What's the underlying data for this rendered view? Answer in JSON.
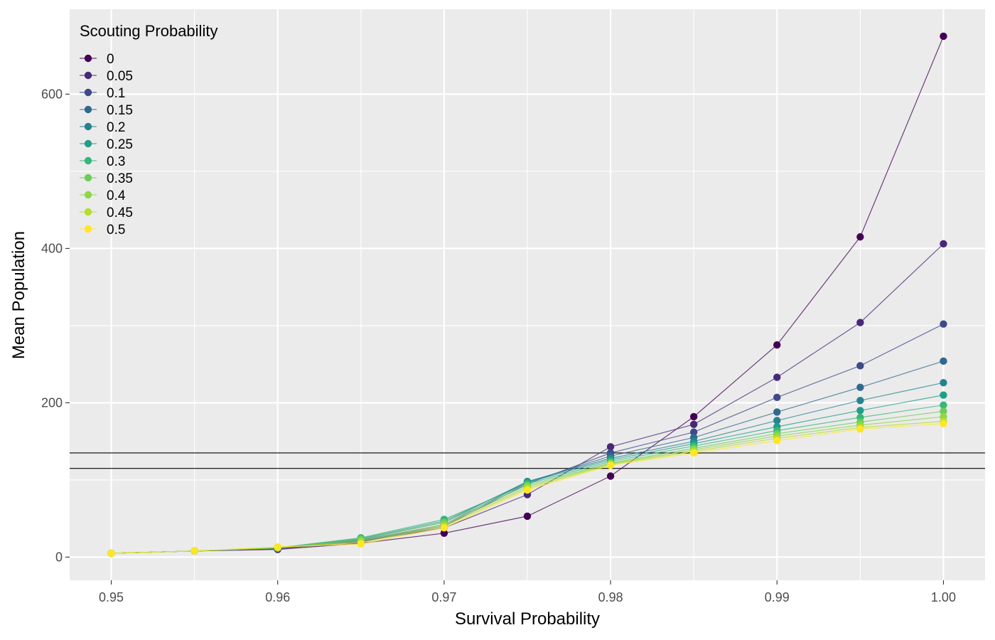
{
  "chart_data": {
    "type": "line",
    "xlabel": "Survival Probability",
    "ylabel": "Mean Population",
    "xlim": [
      0.9475,
      1.0025
    ],
    "ylim": [
      -30,
      710
    ],
    "x_ticks": [
      0.95,
      0.96,
      0.97,
      0.98,
      0.99,
      1.0
    ],
    "x_tick_labels": [
      "0.95",
      "0.96",
      "0.97",
      "0.98",
      "0.99",
      "1.00"
    ],
    "y_ticks": [
      0,
      200,
      400,
      600
    ],
    "y_tick_labels": [
      "0",
      "200",
      "400",
      "600"
    ],
    "grid": true,
    "background": "#ebebeb",
    "grid_color": "#ffffff",
    "legend": {
      "title": "Scouting Probability",
      "position": "top-left-inside"
    },
    "hlines": [
      115,
      135
    ],
    "hline_color": "#000000",
    "x": [
      0.95,
      0.955,
      0.96,
      0.965,
      0.97,
      0.975,
      0.98,
      0.985,
      0.99,
      0.995,
      1.0
    ],
    "series": [
      {
        "name": "0",
        "color": "#440154",
        "values": [
          5,
          8,
          10,
          18,
          31,
          53,
          105,
          182,
          275,
          415,
          675
        ]
      },
      {
        "name": "0.05",
        "color": "#482878",
        "values": [
          5,
          8,
          11,
          20,
          38,
          81,
          143,
          172,
          233,
          304,
          406
        ]
      },
      {
        "name": "0.1",
        "color": "#3E4A89",
        "values": [
          5,
          8,
          11,
          21,
          40,
          95,
          135,
          162,
          207,
          248,
          302
        ]
      },
      {
        "name": "0.15",
        "color": "#31688E",
        "values": [
          5,
          8,
          11,
          22,
          42,
          97,
          131,
          155,
          188,
          220,
          254
        ]
      },
      {
        "name": "0.2",
        "color": "#26828E",
        "values": [
          5,
          8,
          12,
          23,
          45,
          98,
          128,
          150,
          177,
          203,
          226
        ]
      },
      {
        "name": "0.25",
        "color": "#1F9E89",
        "values": [
          5,
          8,
          12,
          24,
          47,
          97,
          126,
          147,
          169,
          190,
          210
        ]
      },
      {
        "name": "0.3",
        "color": "#35B779",
        "values": [
          5,
          8,
          12,
          25,
          49,
          95,
          124,
          144,
          164,
          181,
          197
        ]
      },
      {
        "name": "0.35",
        "color": "#6DCD59",
        "values": [
          5,
          8,
          12,
          23,
          45,
          93,
          122,
          141,
          160,
          175,
          189
        ]
      },
      {
        "name": "0.4",
        "color": "#8FD744",
        "values": [
          5,
          8,
          12,
          21,
          42,
          91,
          121,
          139,
          157,
          171,
          182
        ]
      },
      {
        "name": "0.45",
        "color": "#B4DE2C",
        "values": [
          5,
          8,
          13,
          19,
          40,
          89,
          120,
          137,
          154,
          168,
          176
        ]
      },
      {
        "name": "0.5",
        "color": "#FDE725",
        "values": [
          5,
          8,
          13,
          17,
          38,
          87,
          119,
          135,
          151,
          166,
          173
        ]
      }
    ]
  }
}
